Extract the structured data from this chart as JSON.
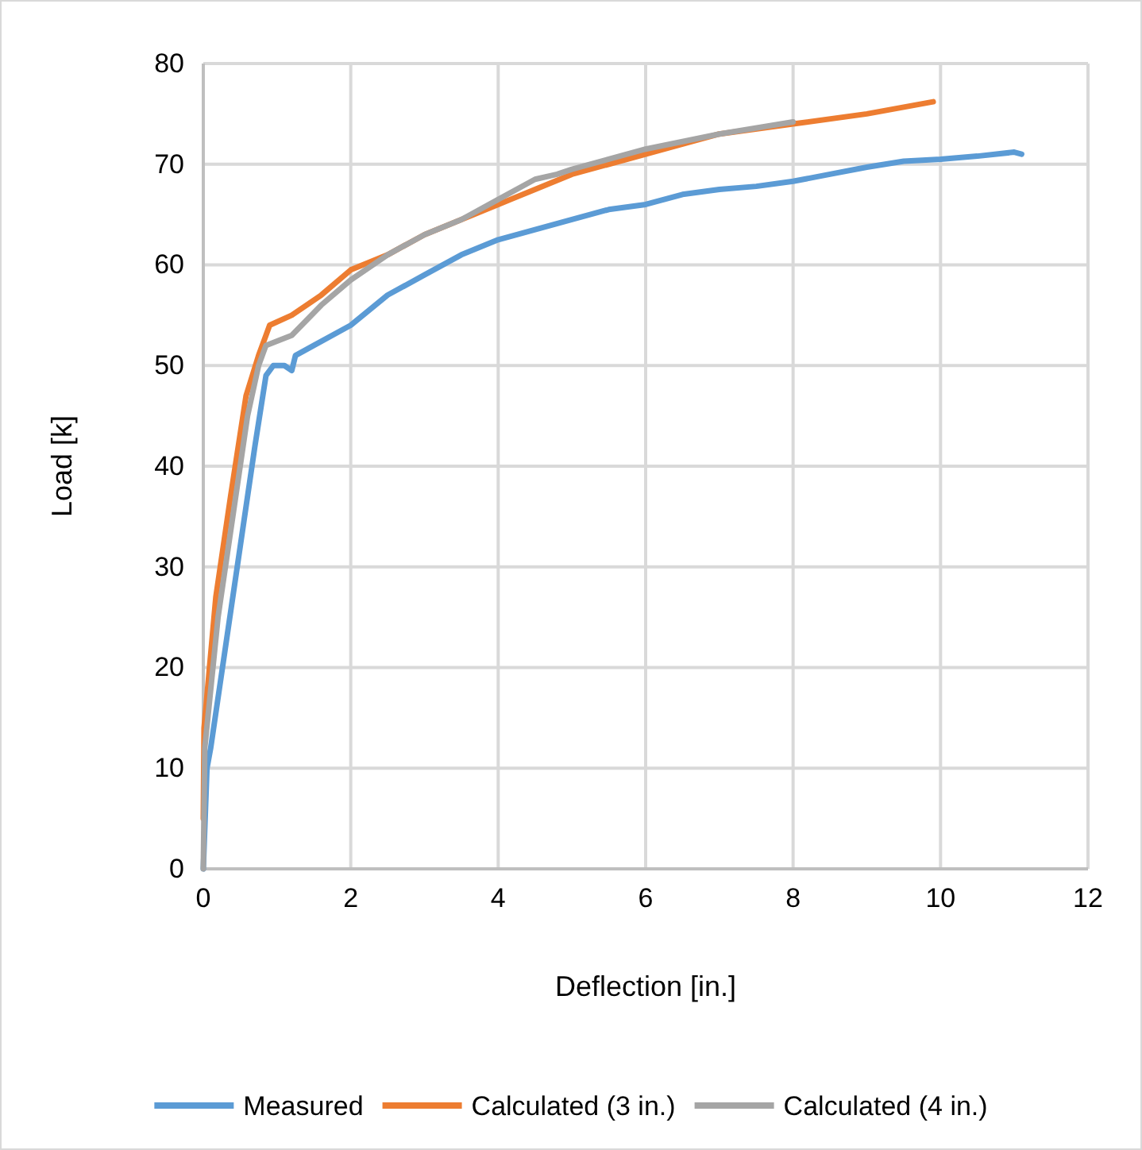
{
  "chart_data": {
    "type": "line",
    "xlabel": "Deflection [in.]",
    "ylabel": "Load [k]",
    "xlim": [
      0,
      12
    ],
    "xticks": [
      0,
      2,
      4,
      6,
      8,
      10,
      12
    ],
    "ylim": [
      0,
      80
    ],
    "yticks": [
      0,
      10,
      20,
      30,
      40,
      50,
      60,
      70,
      80
    ],
    "grid": true,
    "legend": "bottom",
    "marker": "none",
    "line_style": "solid",
    "series": [
      {
        "name": "Measured",
        "color": "#5b9bd5",
        "x": [
          0,
          0.05,
          0.1,
          0.3,
          0.5,
          0.7,
          0.85,
          0.95,
          1.1,
          1.2,
          1.25,
          1.5,
          2,
          2.5,
          3,
          3.5,
          4,
          4.5,
          5,
          5.5,
          6,
          6.5,
          7,
          7.5,
          8,
          8.5,
          9,
          9.5,
          10,
          10.5,
          11,
          11.1
        ],
        "values": [
          0,
          10,
          12,
          22,
          32,
          42,
          49,
          50,
          50,
          49.5,
          51,
          52,
          54,
          57,
          59,
          61,
          62.5,
          63.5,
          64.5,
          65.5,
          66,
          67,
          67.5,
          67.8,
          68.3,
          69,
          69.7,
          70.3,
          70.5,
          70.8,
          71.2,
          71
        ]
      },
      {
        "name": "Calculated (3 in.)",
        "color": "#ed7d31",
        "x": [
          0,
          0.01,
          0.17,
          0.37,
          0.58,
          0.75,
          0.85,
          0.9,
          1.2,
          1.6,
          2,
          2.5,
          3,
          3.5,
          4,
          4.5,
          5,
          5.5,
          6,
          6.5,
          7,
          8,
          9,
          9.9
        ],
        "values": [
          5,
          14,
          27,
          37,
          47,
          51,
          53,
          54,
          55,
          57,
          59.5,
          61,
          63,
          64.5,
          66,
          67.5,
          69,
          70,
          71,
          72,
          73,
          74,
          75,
          76.2
        ]
      },
      {
        "name": "Calculated (4 in.)",
        "color": "#a5a5a5",
        "x": [
          0,
          0.02,
          0.2,
          0.4,
          0.6,
          0.75,
          0.85,
          1.2,
          1.6,
          2,
          2.5,
          3,
          3.5,
          4,
          4.5,
          4.8,
          5,
          5.5,
          6,
          7,
          8
        ],
        "values": [
          0,
          12,
          25,
          35,
          45,
          50,
          52,
          53,
          56,
          58.5,
          61,
          63,
          64.5,
          66.5,
          68.5,
          69,
          69.5,
          70.5,
          71.5,
          73,
          74.2
        ]
      }
    ]
  }
}
